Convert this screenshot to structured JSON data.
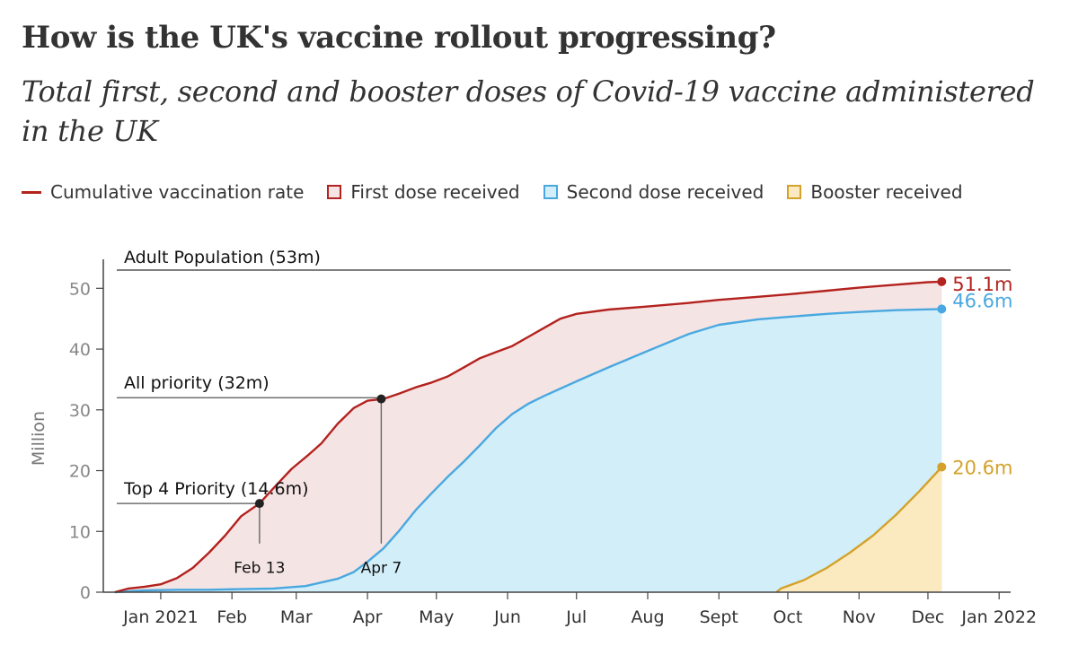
{
  "title": "How is the UK's vaccine rollout progressing?",
  "subtitle": "Total first, second and booster doses of Covid-19 vaccine administered in the UK",
  "legend": [
    {
      "label": "Cumulative vaccination rate",
      "kind": "line",
      "color": "#b3221e",
      "fill": ""
    },
    {
      "label": "First dose received",
      "kind": "swatch",
      "color": "#b3221e",
      "fill": "#f5e4e4"
    },
    {
      "label": "Second dose received",
      "kind": "swatch",
      "color": "#4aa8e0",
      "fill": "#d1eef9"
    },
    {
      "label": "Booster received",
      "kind": "swatch",
      "color": "#d4a22b",
      "fill": "#fbeac0"
    }
  ],
  "colors": {
    "first_line": "#b3221e",
    "first_fill": "#f5e4e4",
    "second_line": "#4aa8e0",
    "second_fill": "#d1eef9",
    "booster_line": "#d4a22b",
    "booster_fill": "#fbeac0",
    "axis": "#444444",
    "tick_label": "#333333",
    "ylabel": "#777777"
  },
  "chart_data": {
    "type": "area",
    "ylabel": "Million",
    "ylim": [
      0,
      53
    ],
    "yticks": [
      0,
      10,
      20,
      30,
      40,
      50
    ],
    "xlim": [
      -25,
      370
    ],
    "x_unit": "days since 1 Jan 2021",
    "xticks": [
      {
        "label": "Jan 2021",
        "x": 0
      },
      {
        "label": "Feb",
        "x": 31
      },
      {
        "label": "Mar",
        "x": 59
      },
      {
        "label": "Apr",
        "x": 90
      },
      {
        "label": "May",
        "x": 120
      },
      {
        "label": "Jun",
        "x": 151
      },
      {
        "label": "Jul",
        "x": 181
      },
      {
        "label": "Aug",
        "x": 212
      },
      {
        "label": "Sept",
        "x": 243
      },
      {
        "label": "Oct",
        "x": 273
      },
      {
        "label": "Nov",
        "x": 304
      },
      {
        "label": "Dec",
        "x": 334
      },
      {
        "label": "Jan 2022",
        "x": 365
      }
    ],
    "series": [
      {
        "name": "First dose received",
        "key": "first",
        "end_label": "51.1m",
        "points": [
          [
            -20,
            0
          ],
          [
            -14,
            0.6
          ],
          [
            -7,
            0.9
          ],
          [
            0,
            1.3
          ],
          [
            7,
            2.3
          ],
          [
            14,
            4.0
          ],
          [
            21,
            6.5
          ],
          [
            28,
            9.3
          ],
          [
            35,
            12.5
          ],
          [
            43,
            14.6
          ],
          [
            50,
            17.5
          ],
          [
            57,
            20.3
          ],
          [
            64,
            22.5
          ],
          [
            70,
            24.5
          ],
          [
            77,
            27.7
          ],
          [
            84,
            30.3
          ],
          [
            90,
            31.5
          ],
          [
            97,
            31.8
          ],
          [
            104,
            32.7
          ],
          [
            111,
            33.7
          ],
          [
            118,
            34.5
          ],
          [
            125,
            35.5
          ],
          [
            132,
            37.0
          ],
          [
            139,
            38.5
          ],
          [
            146,
            39.5
          ],
          [
            153,
            40.5
          ],
          [
            160,
            42.0
          ],
          [
            167,
            43.5
          ],
          [
            174,
            45.0
          ],
          [
            181,
            45.8
          ],
          [
            195,
            46.5
          ],
          [
            212,
            47.0
          ],
          [
            230,
            47.6
          ],
          [
            243,
            48.1
          ],
          [
            260,
            48.6
          ],
          [
            273,
            49.0
          ],
          [
            290,
            49.6
          ],
          [
            304,
            50.1
          ],
          [
            320,
            50.6
          ],
          [
            334,
            51.0
          ],
          [
            340,
            51.1
          ]
        ]
      },
      {
        "name": "Second dose received",
        "key": "second",
        "end_label": "46.6m",
        "points": [
          [
            -20,
            0
          ],
          [
            -7,
            0.3
          ],
          [
            7,
            0.4
          ],
          [
            21,
            0.4
          ],
          [
            35,
            0.5
          ],
          [
            49,
            0.6
          ],
          [
            63,
            1.0
          ],
          [
            77,
            2.2
          ],
          [
            84,
            3.3
          ],
          [
            90,
            5.0
          ],
          [
            97,
            7.2
          ],
          [
            104,
            10.2
          ],
          [
            111,
            13.5
          ],
          [
            118,
            16.3
          ],
          [
            125,
            19.0
          ],
          [
            132,
            21.5
          ],
          [
            139,
            24.2
          ],
          [
            146,
            27.0
          ],
          [
            153,
            29.3
          ],
          [
            160,
            31.0
          ],
          [
            167,
            32.3
          ],
          [
            174,
            33.5
          ],
          [
            181,
            34.7
          ],
          [
            195,
            37.0
          ],
          [
            212,
            39.7
          ],
          [
            230,
            42.5
          ],
          [
            243,
            44.0
          ],
          [
            260,
            44.9
          ],
          [
            273,
            45.3
          ],
          [
            290,
            45.8
          ],
          [
            304,
            46.1
          ],
          [
            320,
            46.4
          ],
          [
            340,
            46.6
          ]
        ]
      },
      {
        "name": "Booster received",
        "key": "booster",
        "end_label": "20.6m",
        "points": [
          [
            268,
            0
          ],
          [
            270,
            0.6
          ],
          [
            280,
            2.0
          ],
          [
            290,
            4.0
          ],
          [
            300,
            6.5
          ],
          [
            310,
            9.3
          ],
          [
            320,
            12.7
          ],
          [
            330,
            16.5
          ],
          [
            340,
            20.6
          ]
        ]
      }
    ],
    "reference_lines": [
      {
        "label": "Adult Population (53m)",
        "value": 53
      },
      {
        "label": "All priority (32m)",
        "value": 32
      },
      {
        "label": "Top 4 Priority (14.6m)",
        "value": 14.6
      }
    ],
    "markers": [
      {
        "label": "Feb 13",
        "x": 43,
        "y": 14.6
      },
      {
        "label": "Apr 7",
        "x": 96,
        "y": 31.8
      }
    ]
  }
}
